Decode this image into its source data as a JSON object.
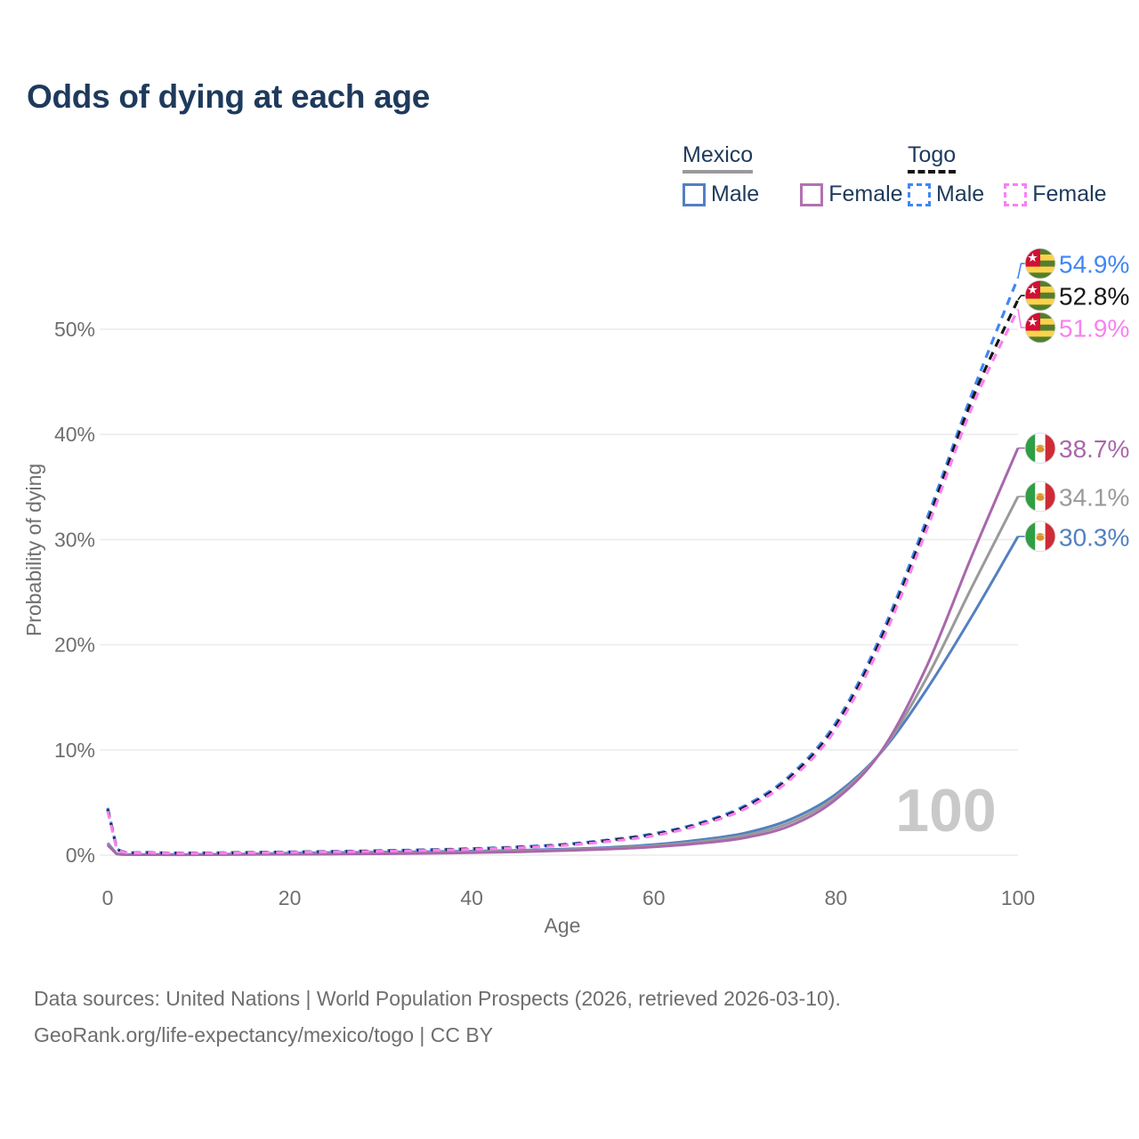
{
  "title": "Odds of dying at each age",
  "watermark": "100",
  "legend": {
    "groups": [
      {
        "label": "Mexico",
        "style": "solid",
        "underline_color": "#9a9a9a",
        "items": [
          {
            "label": "Male",
            "color": "#5380c1",
            "dashed": false
          },
          {
            "label": "Female",
            "color": "#b271b2",
            "dashed": false
          }
        ]
      },
      {
        "label": "Togo",
        "style": "dashed",
        "underline_color": "#141414",
        "items": [
          {
            "label": "Male",
            "color": "#4186f5",
            "dashed": true
          },
          {
            "label": "Female",
            "color": "#fa80f2",
            "dashed": true
          }
        ]
      }
    ]
  },
  "axes": {
    "x": {
      "label": "Age",
      "ticks": [
        0,
        20,
        40,
        60,
        80,
        100
      ],
      "range": [
        0,
        100
      ]
    },
    "y": {
      "label": "Probability of dying",
      "ticks": [
        "0%",
        "10%",
        "20%",
        "30%",
        "40%",
        "50%"
      ],
      "tick_values": [
        0,
        10,
        20,
        30,
        40,
        50
      ],
      "range_pct": [
        0,
        57
      ]
    }
  },
  "footer": {
    "line1": "Data sources: United Nations | World Population Prospects (2026, retrieved 2026-03-10).",
    "line2": "GeoRank.org/life-expectancy/mexico/togo | CC BY"
  },
  "chart_data": {
    "type": "line",
    "title": "Odds of dying at each age",
    "xlabel": "Age",
    "ylabel": "Probability of dying",
    "xlim": [
      0,
      100
    ],
    "ylim_pct": [
      0,
      57
    ],
    "grid": "horizontal",
    "legend_position": "top-right",
    "series": [
      {
        "id": "mexico-male",
        "name": "Mexico — Male",
        "country": "Mexico",
        "sex": "male",
        "color": "#5380c1",
        "dash": false,
        "flag": "mexico",
        "end_label": "30.3%",
        "points": [
          [
            0,
            1.15
          ],
          [
            1,
            0.12
          ],
          [
            5,
            0.06
          ],
          [
            10,
            0.06
          ],
          [
            15,
            0.11
          ],
          [
            20,
            0.19
          ],
          [
            25,
            0.25
          ],
          [
            30,
            0.29
          ],
          [
            35,
            0.33
          ],
          [
            40,
            0.38
          ],
          [
            45,
            0.46
          ],
          [
            50,
            0.57
          ],
          [
            55,
            0.73
          ],
          [
            60,
            1.0
          ],
          [
            65,
            1.45
          ],
          [
            70,
            2.1
          ],
          [
            75,
            3.4
          ],
          [
            80,
            5.8
          ],
          [
            85,
            9.8
          ],
          [
            90,
            15.8
          ],
          [
            95,
            22.8
          ],
          [
            100,
            30.3
          ]
        ]
      },
      {
        "id": "mexico-total",
        "name": "Mexico — Both sexes",
        "country": "Mexico",
        "sex": "total",
        "color": "#9a9a9a",
        "dash": false,
        "flag": "mexico",
        "end_label": "34.1%",
        "points": [
          [
            0,
            1.05
          ],
          [
            1,
            0.11
          ],
          [
            5,
            0.05
          ],
          [
            10,
            0.05
          ],
          [
            15,
            0.09
          ],
          [
            20,
            0.14
          ],
          [
            25,
            0.18
          ],
          [
            30,
            0.21
          ],
          [
            35,
            0.25
          ],
          [
            40,
            0.31
          ],
          [
            45,
            0.39
          ],
          [
            50,
            0.5
          ],
          [
            55,
            0.65
          ],
          [
            60,
            0.89
          ],
          [
            65,
            1.28
          ],
          [
            70,
            1.88
          ],
          [
            75,
            3.1
          ],
          [
            80,
            5.55
          ],
          [
            85,
            9.85
          ],
          [
            90,
            16.9
          ],
          [
            95,
            25.6
          ],
          [
            100,
            34.1
          ]
        ]
      },
      {
        "id": "mexico-female",
        "name": "Mexico — Female",
        "country": "Mexico",
        "sex": "female",
        "color": "#a868ab",
        "dash": false,
        "flag": "mexico",
        "end_label": "38.7%",
        "points": [
          [
            0,
            0.95
          ],
          [
            1,
            0.1
          ],
          [
            5,
            0.04
          ],
          [
            10,
            0.04
          ],
          [
            15,
            0.06
          ],
          [
            20,
            0.08
          ],
          [
            25,
            0.1
          ],
          [
            30,
            0.13
          ],
          [
            35,
            0.17
          ],
          [
            40,
            0.23
          ],
          [
            45,
            0.31
          ],
          [
            50,
            0.43
          ],
          [
            55,
            0.57
          ],
          [
            60,
            0.78
          ],
          [
            65,
            1.12
          ],
          [
            70,
            1.65
          ],
          [
            75,
            2.8
          ],
          [
            80,
            5.3
          ],
          [
            85,
            9.9
          ],
          [
            90,
            18.0
          ],
          [
            95,
            28.6
          ],
          [
            100,
            38.7
          ]
        ]
      },
      {
        "id": "togo-male",
        "name": "Togo — Male",
        "country": "Togo",
        "sex": "male",
        "color": "#4186f5",
        "dash": true,
        "flag": "togo",
        "end_label": "54.9%",
        "points": [
          [
            0,
            4.5
          ],
          [
            1,
            0.62
          ],
          [
            5,
            0.26
          ],
          [
            10,
            0.21
          ],
          [
            15,
            0.26
          ],
          [
            20,
            0.31
          ],
          [
            25,
            0.36
          ],
          [
            30,
            0.43
          ],
          [
            35,
            0.51
          ],
          [
            40,
            0.62
          ],
          [
            45,
            0.78
          ],
          [
            50,
            1.02
          ],
          [
            55,
            1.45
          ],
          [
            60,
            2.05
          ],
          [
            65,
            3.05
          ],
          [
            70,
            4.7
          ],
          [
            75,
            7.6
          ],
          [
            80,
            12.6
          ],
          [
            85,
            21.0
          ],
          [
            90,
            32.0
          ],
          [
            95,
            44.0
          ],
          [
            100,
            54.9
          ]
        ]
      },
      {
        "id": "togo-total",
        "name": "Togo — Both sexes",
        "country": "Togo",
        "sex": "total",
        "color": "#161616",
        "dash": true,
        "flag": "togo",
        "end_label": "52.8%",
        "points": [
          [
            0,
            4.35
          ],
          [
            1,
            0.59
          ],
          [
            5,
            0.24
          ],
          [
            10,
            0.19
          ],
          [
            15,
            0.24
          ],
          [
            20,
            0.29
          ],
          [
            25,
            0.33
          ],
          [
            30,
            0.4
          ],
          [
            35,
            0.48
          ],
          [
            40,
            0.58
          ],
          [
            45,
            0.74
          ],
          [
            50,
            0.97
          ],
          [
            55,
            1.38
          ],
          [
            60,
            1.95
          ],
          [
            65,
            2.95
          ],
          [
            70,
            4.55
          ],
          [
            75,
            7.4
          ],
          [
            80,
            12.3
          ],
          [
            85,
            20.6
          ],
          [
            90,
            31.5
          ],
          [
            95,
            43.4
          ],
          [
            100,
            52.8
          ]
        ]
      },
      {
        "id": "togo-female",
        "name": "Togo — Female",
        "country": "Togo",
        "sex": "female",
        "color": "#fa80f2",
        "dash": true,
        "flag": "togo",
        "end_label": "51.9%",
        "points": [
          [
            0,
            4.2
          ],
          [
            1,
            0.56
          ],
          [
            5,
            0.23
          ],
          [
            10,
            0.18
          ],
          [
            15,
            0.22
          ],
          [
            20,
            0.27
          ],
          [
            25,
            0.31
          ],
          [
            30,
            0.37
          ],
          [
            35,
            0.45
          ],
          [
            40,
            0.55
          ],
          [
            45,
            0.7
          ],
          [
            50,
            0.92
          ],
          [
            55,
            1.3
          ],
          [
            60,
            1.85
          ],
          [
            65,
            2.85
          ],
          [
            70,
            4.4
          ],
          [
            75,
            7.2
          ],
          [
            80,
            12.0
          ],
          [
            85,
            20.2
          ],
          [
            90,
            31.0
          ],
          [
            95,
            42.7
          ],
          [
            100,
            51.9
          ]
        ]
      }
    ]
  }
}
